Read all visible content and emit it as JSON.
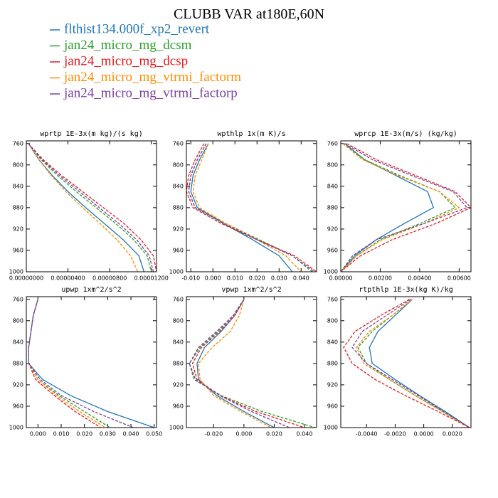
{
  "title": "CLUBB VAR at180E,60N",
  "legend": [
    {
      "name": "flthist134.000f_xp2_revert",
      "color": "#1f77b4"
    },
    {
      "name": "jan24_micro_mg_dcsm",
      "color": "#2ca02c"
    },
    {
      "name": "jan24_micro_mg_dcsp",
      "color": "#e31a1c"
    },
    {
      "name": "jan24_micro_mg_vtrmi_factorm",
      "color": "#ff8c00"
    },
    {
      "name": "jan24_micro_mg_vtrmi_factorp",
      "color": "#7b3fa0"
    }
  ],
  "chart_data": [
    {
      "type": "line",
      "title": "wprtp  1E-3x(m kg)/(s kg)",
      "y": [
        760,
        790,
        820,
        850,
        880,
        910,
        940,
        970,
        1000
      ],
      "ylim": [
        1000,
        755
      ],
      "yticks": [
        760,
        800,
        840,
        880,
        920,
        960,
        1000
      ],
      "xlim": [
        0,
        1.25e-05
      ],
      "xticks": [
        {
          "value": 0,
          "label": "0.00000000"
        },
        {
          "value": 4e-06,
          "label": "0.00000400"
        },
        {
          "value": 8e-06,
          "label": "0.00000800"
        },
        {
          "value": 1.2e-05,
          "label": "0.00001200"
        }
      ],
      "series": [
        {
          "values": [
            2e-07,
            1.2e-06,
            2.5e-06,
            4e-06,
            5.7e-06,
            7.5e-06,
            9.3e-06,
            1.08e-05,
            1.13e-05
          ]
        },
        {
          "values": [
            2e-07,
            1.4e-06,
            3e-06,
            4.8e-06,
            6.7e-06,
            8.6e-06,
            1.03e-05,
            1.16e-05,
            1.2e-05
          ]
        },
        {
          "values": [
            2e-07,
            1.6e-06,
            3.4e-06,
            5.4e-06,
            7.4e-06,
            9.4e-06,
            1.1e-05,
            1.22e-05,
            1.25e-05
          ]
        },
        {
          "values": [
            2e-07,
            1.2e-06,
            2.4e-06,
            3.8e-06,
            5.4e-06,
            7.1e-06,
            8.7e-06,
            1e-05,
            1.07e-05
          ]
        },
        {
          "values": [
            2e-07,
            1.5e-06,
            3.2e-06,
            5.1e-06,
            7e-06,
            8.9e-06,
            1.06e-05,
            1.18e-05,
            1.22e-05
          ]
        }
      ]
    },
    {
      "type": "line",
      "title": "wpthlp  1x(m K)/s",
      "y": [
        760,
        790,
        820,
        850,
        880,
        910,
        940,
        970,
        1000
      ],
      "ylim": [
        1000,
        755
      ],
      "yticks": [
        760,
        800,
        840,
        880,
        920,
        960,
        1000
      ],
      "xlim": [
        -0.012,
        0.047
      ],
      "xticks": [
        {
          "value": -0.01,
          "label": "-0.010"
        },
        {
          "value": 0,
          "label": "0.000"
        },
        {
          "value": 0.01,
          "label": "0.010"
        },
        {
          "value": 0.02,
          "label": "0.020"
        },
        {
          "value": 0.03,
          "label": "0.030"
        },
        {
          "value": 0.04,
          "label": "0.040"
        }
      ],
      "series": [
        {
          "values": [
            -0.002,
            -0.006,
            -0.009,
            -0.01,
            -0.007,
            0.005,
            0.018,
            0.03,
            0.036
          ]
        },
        {
          "values": [
            -0.003,
            -0.007,
            -0.01,
            -0.011,
            -0.008,
            0.006,
            0.021,
            0.036,
            0.045
          ]
        },
        {
          "values": [
            -0.004,
            -0.008,
            -0.011,
            -0.012,
            -0.009,
            0.004,
            0.02,
            0.037,
            0.047
          ]
        },
        {
          "values": [
            -0.002,
            -0.005,
            -0.008,
            -0.009,
            -0.006,
            0.006,
            0.02,
            0.033,
            0.04
          ]
        },
        {
          "values": [
            -0.003,
            -0.007,
            -0.01,
            -0.011,
            -0.008,
            0.005,
            0.02,
            0.036,
            0.046
          ]
        }
      ]
    },
    {
      "type": "line",
      "title": "wprcp  1E-3x(m/s) (kg/kg)",
      "y": [
        760,
        790,
        820,
        850,
        880,
        910,
        940,
        970,
        1000
      ],
      "ylim": [
        1000,
        755
      ],
      "yticks": [
        760,
        800,
        840,
        880,
        920,
        960,
        1000
      ],
      "xlim": [
        0,
        0.0066
      ],
      "xticks": [
        {
          "value": 0,
          "label": "0.00000"
        },
        {
          "value": 0.002,
          "label": "0.00200"
        },
        {
          "value": 0.004,
          "label": "0.00400"
        },
        {
          "value": 0.006,
          "label": "0.00600"
        }
      ],
      "series": [
        {
          "values": [
            0.0002,
            0.0012,
            0.0028,
            0.0044,
            0.0047,
            0.0032,
            0.0018,
            0.0007,
            0
          ]
        },
        {
          "values": [
            0.0001,
            0.0012,
            0.003,
            0.005,
            0.0058,
            0.004,
            0.002,
            0.0008,
            0
          ]
        },
        {
          "values": [
            0.0003,
            0.0018,
            0.0038,
            0.0058,
            0.0066,
            0.0048,
            0.0026,
            0.001,
            0
          ]
        },
        {
          "values": [
            0.0001,
            0.0011,
            0.0029,
            0.005,
            0.006,
            0.0042,
            0.0021,
            0.0008,
            0
          ]
        },
        {
          "values": [
            0.0002,
            0.0016,
            0.0036,
            0.0057,
            0.0064,
            0.0042,
            0.0018,
            0.0006,
            0
          ]
        }
      ]
    },
    {
      "type": "line",
      "title": "upwp  1xm^2/s^2",
      "y": [
        760,
        790,
        820,
        850,
        880,
        910,
        940,
        970,
        1000
      ],
      "ylim": [
        1000,
        755
      ],
      "yticks": [
        760,
        800,
        840,
        880,
        920,
        960,
        1000
      ],
      "xlim": [
        -0.005,
        0.051
      ],
      "xticks": [
        {
          "value": 0,
          "label": "0.000"
        },
        {
          "value": 0.01,
          "label": "0.010"
        },
        {
          "value": 0.02,
          "label": "0.020"
        },
        {
          "value": 0.03,
          "label": "0.030"
        },
        {
          "value": 0.04,
          "label": "0.040"
        },
        {
          "value": 0.05,
          "label": "0.050"
        }
      ],
      "series": [
        {
          "values": [
            0,
            -0.002,
            -0.003,
            -0.004,
            -0.004,
            0.002,
            0.014,
            0.03,
            0.05
          ]
        },
        {
          "values": [
            0,
            -0.002,
            -0.003,
            -0.004,
            -0.004,
            0.0,
            0.009,
            0.02,
            0.031
          ]
        },
        {
          "values": [
            0,
            -0.002,
            -0.003,
            -0.004,
            -0.004,
            -0.001,
            0.007,
            0.016,
            0.027
          ]
        },
        {
          "values": [
            0,
            -0.002,
            -0.003,
            -0.004,
            -0.004,
            0.0,
            0.008,
            0.018,
            0.029
          ]
        },
        {
          "values": [
            0,
            -0.002,
            -0.003,
            -0.004,
            -0.004,
            0.001,
            0.01,
            0.024,
            0.041
          ]
        }
      ]
    },
    {
      "type": "line",
      "title": "vpwp  1xm^2/s^2",
      "y": [
        760,
        790,
        820,
        850,
        880,
        910,
        940,
        970,
        1000
      ],
      "ylim": [
        1000,
        755
      ],
      "yticks": [
        760,
        800,
        840,
        880,
        920,
        960,
        1000
      ],
      "xlim": [
        -0.038,
        0.048
      ],
      "xticks": [
        {
          "value": -0.02,
          "label": "-0.020"
        },
        {
          "value": 0,
          "label": "0.000"
        },
        {
          "value": 0.02,
          "label": "0.020"
        },
        {
          "value": 0.04,
          "label": "0.040"
        }
      ],
      "series": [
        {
          "values": [
            0,
            -0.006,
            -0.015,
            -0.026,
            -0.031,
            -0.03,
            -0.018,
            0.0,
            0.02
          ]
        },
        {
          "values": [
            0,
            -0.007,
            -0.017,
            -0.029,
            -0.036,
            -0.033,
            -0.015,
            0.012,
            0.047
          ]
        },
        {
          "values": [
            0,
            -0.006,
            -0.016,
            -0.028,
            -0.034,
            -0.031,
            -0.016,
            0.008,
            0.04
          ]
        },
        {
          "values": [
            0,
            -0.003,
            -0.009,
            -0.021,
            -0.03,
            -0.029,
            -0.02,
            -0.002,
            0.018
          ]
        },
        {
          "values": [
            0,
            -0.007,
            -0.018,
            -0.03,
            -0.036,
            -0.032,
            -0.016,
            0.005,
            0.03
          ]
        }
      ]
    },
    {
      "type": "line",
      "title": "rtpthlp  1E-3x(kg K)/kg",
      "y": [
        760,
        790,
        820,
        850,
        880,
        910,
        940,
        970,
        1000
      ],
      "ylim": [
        1000,
        755
      ],
      "yticks": [
        760,
        800,
        840,
        880,
        920,
        960,
        1000
      ],
      "xlim": [
        -0.0058,
        0.0033
      ],
      "xticks": [
        {
          "value": -0.004,
          "label": "-0.0040"
        },
        {
          "value": -0.002,
          "label": "-0.0020"
        },
        {
          "value": 0,
          "label": "0.0000"
        },
        {
          "value": 0.002,
          "label": "0.0020"
        }
      ],
      "series": [
        {
          "values": [
            -0.0008,
            -0.002,
            -0.0032,
            -0.0038,
            -0.0036,
            -0.002,
            -0.0003,
            0.0015,
            0.0032
          ]
        },
        {
          "values": [
            -0.0008,
            -0.0022,
            -0.0036,
            -0.0046,
            -0.004,
            -0.0024,
            -0.0006,
            0.0013,
            0.0032
          ]
        },
        {
          "values": [
            -0.001,
            -0.003,
            -0.0048,
            -0.0056,
            -0.005,
            -0.0034,
            -0.0013,
            0.001,
            0.0032
          ]
        },
        {
          "values": [
            -0.0008,
            -0.0022,
            -0.0038,
            -0.0047,
            -0.0042,
            -0.0024,
            -0.0006,
            0.0013,
            0.0032
          ]
        },
        {
          "values": [
            -0.0009,
            -0.0026,
            -0.0043,
            -0.005,
            -0.004,
            -0.0022,
            -0.0004,
            0.0014,
            0.0032
          ]
        }
      ]
    }
  ]
}
